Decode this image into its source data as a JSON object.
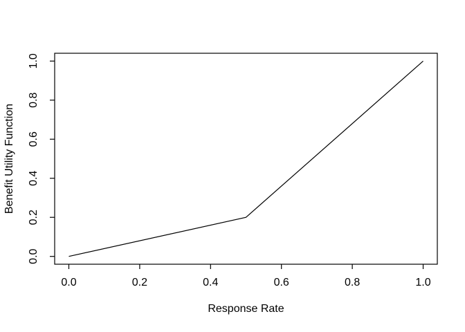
{
  "chart_data": {
    "type": "line",
    "title": "",
    "xlabel": "Response Rate",
    "ylabel": "Benefit Utility Function",
    "x": [
      0.0,
      0.5,
      1.0
    ],
    "y": [
      0.0,
      0.2,
      1.0
    ],
    "xlim": [
      0.0,
      1.0
    ],
    "ylim": [
      0.0,
      1.0
    ],
    "xticks": [
      0.0,
      0.2,
      0.4,
      0.6,
      0.8,
      1.0
    ],
    "yticks": [
      0.0,
      0.2,
      0.4,
      0.6,
      0.8,
      1.0
    ],
    "xtick_labels": [
      "0.0",
      "0.2",
      "0.4",
      "0.6",
      "0.8",
      "1.0"
    ],
    "ytick_labels": [
      "0.0",
      "0.2",
      "0.4",
      "0.6",
      "0.8",
      "1.0"
    ],
    "grid": false,
    "legend": null,
    "box": true,
    "line_color": "#000000",
    "axis_color": "#000000",
    "text_color": "#000000",
    "background": "#ffffff"
  }
}
